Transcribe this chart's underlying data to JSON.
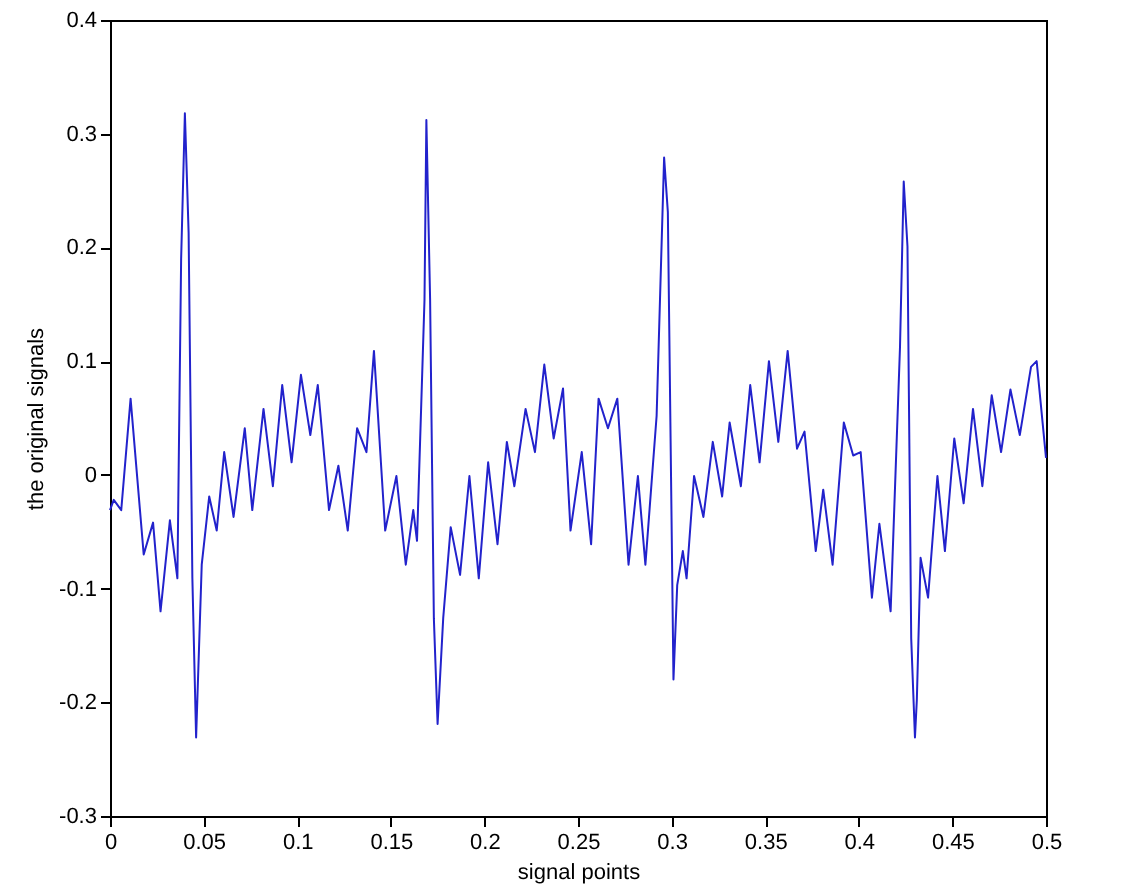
{
  "chart_data": {
    "type": "line",
    "xlabel": "signal points",
    "ylabel": "the original signals",
    "xlim": [
      0,
      0.5
    ],
    "ylim": [
      -0.3,
      0.4
    ],
    "xticks": [
      0,
      0.05,
      0.1,
      0.15,
      0.2,
      0.25,
      0.3,
      0.35,
      0.4,
      0.45,
      0.5
    ],
    "yticks": [
      -0.3,
      -0.2,
      -0.1,
      0,
      0.1,
      0.2,
      0.3,
      0.4
    ],
    "x": [
      0,
      0.002,
      0.006,
      0.011,
      0.018,
      0.023,
      0.027,
      0.032,
      0.036,
      0.038,
      0.04,
      0.042,
      0.044,
      0.046,
      0.049,
      0.053,
      0.057,
      0.061,
      0.066,
      0.072,
      0.076,
      0.082,
      0.087,
      0.092,
      0.097,
      0.102,
      0.107,
      0.111,
      0.117,
      0.122,
      0.127,
      0.132,
      0.137,
      0.141,
      0.147,
      0.153,
      0.158,
      0.162,
      0.164,
      0.168,
      0.169,
      0.171,
      0.173,
      0.175,
      0.178,
      0.182,
      0.187,
      0.192,
      0.197,
      0.202,
      0.207,
      0.212,
      0.216,
      0.222,
      0.227,
      0.232,
      0.237,
      0.242,
      0.246,
      0.252,
      0.257,
      0.261,
      0.266,
      0.271,
      0.277,
      0.282,
      0.286,
      0.292,
      0.296,
      0.298,
      0.301,
      0.303,
      0.306,
      0.308,
      0.312,
      0.317,
      0.322,
      0.327,
      0.331,
      0.337,
      0.342,
      0.347,
      0.352,
      0.357,
      0.362,
      0.367,
      0.371,
      0.377,
      0.381,
      0.386,
      0.392,
      0.397,
      0.401,
      0.407,
      0.411,
      0.417,
      0.422,
      0.424,
      0.426,
      0.428,
      0.43,
      0.431,
      0.433,
      0.437,
      0.442,
      0.446,
      0.451,
      0.456,
      0.461,
      0.466,
      0.471,
      0.476,
      0.481,
      0.486,
      0.492,
      0.495,
      0.5
    ],
    "series": [
      {
        "color": "#2222cc",
        "values": [
          -0.031,
          -0.022,
          -0.031,
          0.067,
          -0.07,
          -0.042,
          -0.12,
          -0.04,
          -0.091,
          0.19,
          0.318,
          0.213,
          -0.091,
          -0.231,
          -0.079,
          -0.019,
          -0.049,
          0.02,
          -0.037,
          0.041,
          -0.031,
          0.058,
          -0.01,
          0.079,
          0.011,
          0.088,
          0.035,
          0.079,
          -0.031,
          0.008,
          -0.049,
          0.041,
          0.02,
          0.109,
          -0.049,
          -0.001,
          -0.079,
          -0.031,
          -0.058,
          0.154,
          0.312,
          0.154,
          -0.126,
          -0.219,
          -0.126,
          -0.046,
          -0.088,
          -0.001,
          -0.091,
          0.011,
          -0.061,
          0.029,
          -0.01,
          0.058,
          0.02,
          0.097,
          0.032,
          0.076,
          -0.049,
          0.02,
          -0.061,
          0.067,
          0.041,
          0.067,
          -0.079,
          -0.001,
          -0.079,
          0.052,
          0.279,
          0.231,
          -0.18,
          -0.097,
          -0.067,
          -0.091,
          -0.001,
          -0.037,
          0.029,
          -0.019,
          0.046,
          -0.01,
          0.079,
          0.011,
          0.1,
          0.029,
          0.109,
          0.023,
          0.038,
          -0.067,
          -0.013,
          -0.079,
          0.046,
          0.017,
          0.02,
          -0.108,
          -0.043,
          -0.12,
          0.112,
          0.258,
          0.201,
          -0.144,
          -0.231,
          -0.198,
          -0.073,
          -0.108,
          -0.001,
          -0.067,
          0.032,
          -0.025,
          0.058,
          -0.01,
          0.07,
          0.02,
          0.075,
          0.035,
          0.095,
          0.1,
          0.015
        ]
      }
    ]
  }
}
